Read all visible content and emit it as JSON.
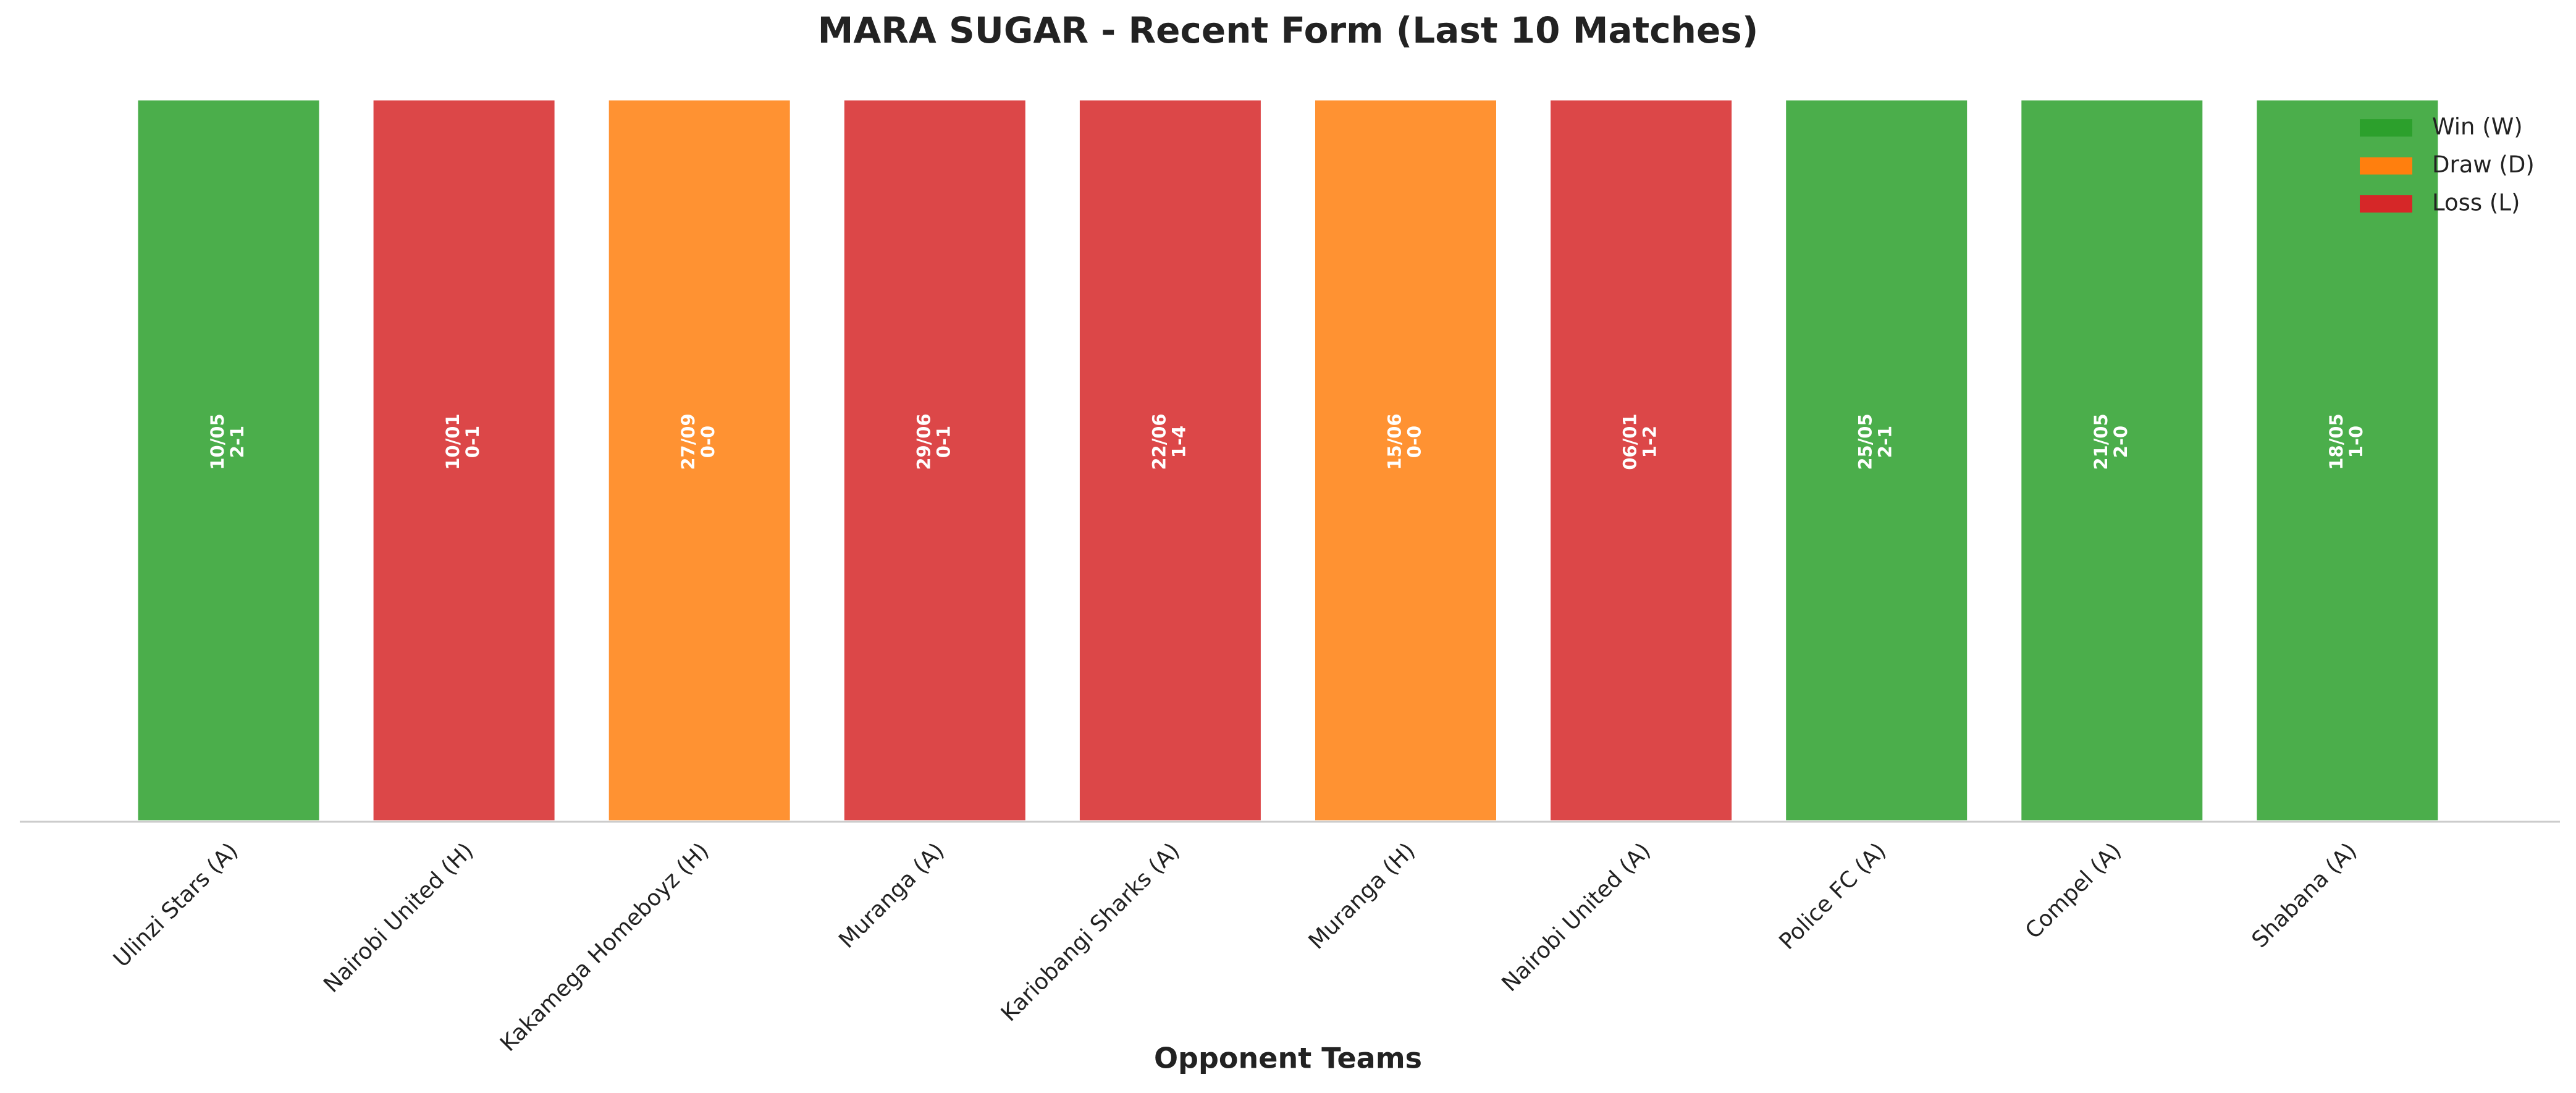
{
  "chart_data": {
    "type": "bar",
    "title": "MARA SUGAR - Recent Form (Last 10 Matches)",
    "x_label": "Opponent Teams",
    "categories": [
      "Ulinzi Stars (A)",
      "Nairobi United (H)",
      "Kakamega Homeboyz (H)",
      "Muranga (A)",
      "Kariobangi Sharks (A)",
      "Muranga (H)",
      "Nairobi United (A)",
      "Police FC (A)",
      "Compel (A)",
      "Shabana (A)"
    ],
    "values": [
      1,
      1,
      1,
      1,
      1,
      1,
      1,
      1,
      1,
      1
    ],
    "dates": [
      "10/05",
      "10/01",
      "27/09",
      "29/06",
      "22/06",
      "15/06",
      "06/01",
      "25/05",
      "21/05",
      "18/05"
    ],
    "scores": [
      "2-1",
      "0-1",
      "0-0",
      "0-1",
      "1-4",
      "0-0",
      "1-2",
      "2-1",
      "2-0",
      "1-0"
    ],
    "colors": [
      "#2ca02c",
      "#d62728",
      "#ff7f0e",
      "#d62728",
      "#d62728",
      "#ff7f0e",
      "#d62728",
      "#2ca02c",
      "#2ca02c",
      "#2ca02c"
    ],
    "ylim": [
      0,
      1
    ],
    "legend": [
      {
        "name": "Win (W)",
        "color": "#2ca02c"
      },
      {
        "name": "Draw (D)",
        "color": "#ff7f0e"
      },
      {
        "name": "Loss (L)",
        "color": "#d62728"
      }
    ],
    "legend_position": "upper right"
  }
}
